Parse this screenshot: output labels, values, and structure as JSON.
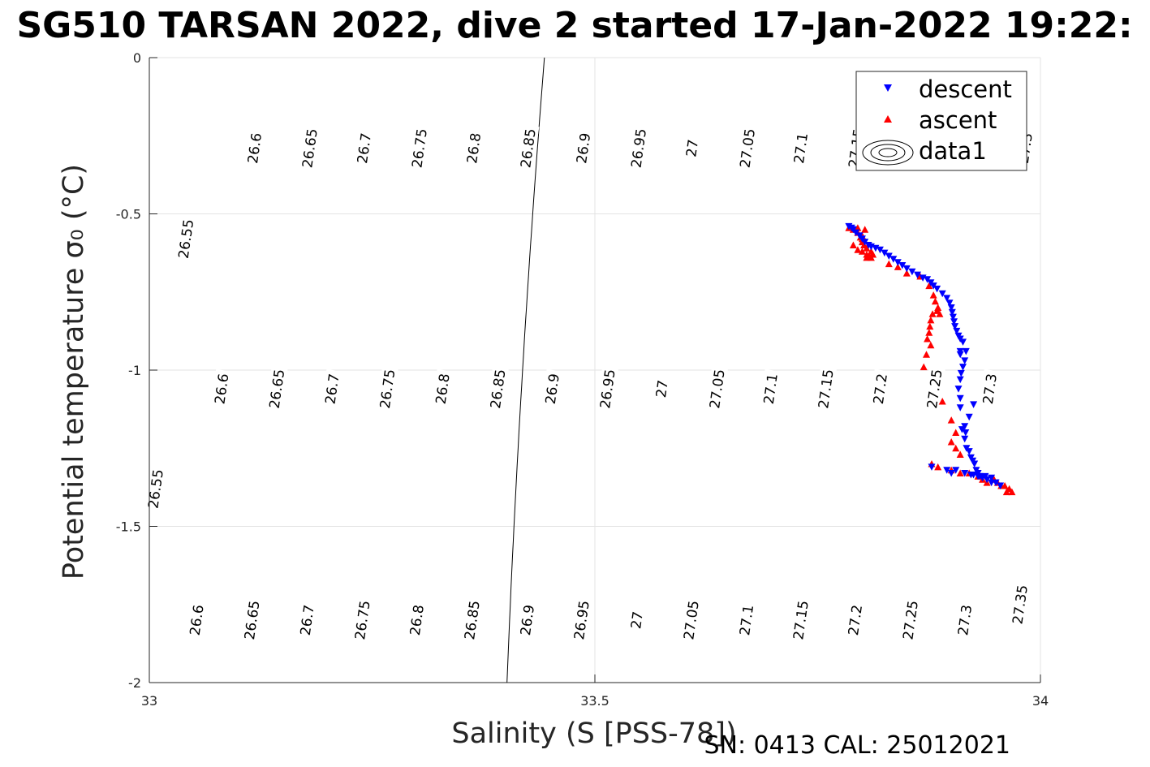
{
  "chart_data": {
    "type": "scatter",
    "title": "SG510 TARSAN 2022, dive 2 started 17-Jan-2022 19:22:",
    "xlabel": "Salinity (S [PSS-78])",
    "ylabel": "Potential temperature σ₀ (°C)",
    "xlim": [
      33,
      34
    ],
    "ylim": [
      -2,
      0
    ],
    "xticks": [
      "33",
      "33.5",
      "34"
    ],
    "yticks": [
      "-2",
      "-1.5",
      "-1",
      "-0.5",
      "0"
    ],
    "grid": true,
    "legend": {
      "placement": "top-right",
      "entries": [
        "descent",
        "ascent",
        "data1"
      ]
    },
    "footer": "SN: 0413  CAL: 25012021",
    "colors": {
      "descent": "#0000ff",
      "ascent": "#ff0000",
      "contour": "#000000",
      "grid": "#e3e3e3"
    },
    "contour_levels": [
      26.55,
      26.6,
      26.65,
      26.7,
      26.75,
      26.8,
      26.85,
      26.9,
      26.95,
      27.0,
      27.05,
      27.1,
      27.15,
      27.2,
      27.25,
      27.3,
      27.35
    ],
    "contour_labels": [
      {
        "text": "26.6",
        "s": 33.118,
        "t": -0.29
      },
      {
        "text": "26.65",
        "s": 33.18,
        "t": -0.29
      },
      {
        "text": "26.7",
        "s": 33.241,
        "t": -0.29
      },
      {
        "text": "26.75",
        "s": 33.303,
        "t": -0.29
      },
      {
        "text": "26.8",
        "s": 33.364,
        "t": -0.29
      },
      {
        "text": "26.85",
        "s": 33.425,
        "t": -0.29
      },
      {
        "text": "26.9",
        "s": 33.487,
        "t": -0.29
      },
      {
        "text": "26.95",
        "s": 33.549,
        "t": -0.29
      },
      {
        "text": "27",
        "s": 33.609,
        "t": -0.29
      },
      {
        "text": "27.05",
        "s": 33.671,
        "t": -0.29
      },
      {
        "text": "27.1",
        "s": 33.731,
        "t": -0.29
      },
      {
        "text": "27.15",
        "s": 33.793,
        "t": -0.29
      },
      {
        "text": "27.3",
        "s": 33.983,
        "t": -0.29
      },
      {
        "text": "26.55",
        "s": 33.041,
        "t": -0.58
      },
      {
        "text": "26.6",
        "s": 33.081,
        "t": -1.06
      },
      {
        "text": "26.65",
        "s": 33.143,
        "t": -1.06
      },
      {
        "text": "26.7",
        "s": 33.205,
        "t": -1.06
      },
      {
        "text": "26.75",
        "s": 33.267,
        "t": -1.06
      },
      {
        "text": "26.8",
        "s": 33.329,
        "t": -1.06
      },
      {
        "text": "26.85",
        "s": 33.391,
        "t": -1.06
      },
      {
        "text": "26.9",
        "s": 33.452,
        "t": -1.06
      },
      {
        "text": "26.95",
        "s": 33.514,
        "t": -1.06
      },
      {
        "text": "27",
        "s": 33.575,
        "t": -1.06
      },
      {
        "text": "27.05",
        "s": 33.637,
        "t": -1.06
      },
      {
        "text": "27.1",
        "s": 33.697,
        "t": -1.06
      },
      {
        "text": "27.15",
        "s": 33.759,
        "t": -1.06
      },
      {
        "text": "27.2",
        "s": 33.82,
        "t": -1.06
      },
      {
        "text": "27.25",
        "s": 33.881,
        "t": -1.06
      },
      {
        "text": "27.3",
        "s": 33.943,
        "t": -1.06
      },
      {
        "text": "26.55",
        "s": 33.007,
        "t": -1.38
      },
      {
        "text": "26.6",
        "s": 33.053,
        "t": -1.8
      },
      {
        "text": "26.65",
        "s": 33.115,
        "t": -1.8
      },
      {
        "text": "26.7",
        "s": 33.177,
        "t": -1.8
      },
      {
        "text": "26.75",
        "s": 33.239,
        "t": -1.8
      },
      {
        "text": "26.8",
        "s": 33.3,
        "t": -1.8
      },
      {
        "text": "26.85",
        "s": 33.362,
        "t": -1.8
      },
      {
        "text": "26.9",
        "s": 33.424,
        "t": -1.8
      },
      {
        "text": "26.95",
        "s": 33.485,
        "t": -1.8
      },
      {
        "text": "27",
        "s": 33.547,
        "t": -1.8
      },
      {
        "text": "27.05",
        "s": 33.608,
        "t": -1.8
      },
      {
        "text": "27.1",
        "s": 33.67,
        "t": -1.8
      },
      {
        "text": "27.15",
        "s": 33.731,
        "t": -1.8
      },
      {
        "text": "27.2",
        "s": 33.792,
        "t": -1.8
      },
      {
        "text": "27.25",
        "s": 33.854,
        "t": -1.8
      },
      {
        "text": "27.3",
        "s": 33.915,
        "t": -1.8
      },
      {
        "text": "27.35",
        "s": 33.977,
        "t": -1.75
      }
    ],
    "series": [
      {
        "name": "descent",
        "marker": "triangle-down",
        "points": [
          [
            33.785,
            -0.54
          ],
          [
            33.788,
            -0.545
          ],
          [
            33.79,
            -0.55
          ],
          [
            33.793,
            -0.56
          ],
          [
            33.797,
            -0.57
          ],
          [
            33.8,
            -0.58
          ],
          [
            33.803,
            -0.59
          ],
          [
            33.807,
            -0.6
          ],
          [
            33.81,
            -0.605
          ],
          [
            33.815,
            -0.61
          ],
          [
            33.82,
            -0.615
          ],
          [
            33.825,
            -0.625
          ],
          [
            33.83,
            -0.635
          ],
          [
            33.835,
            -0.645
          ],
          [
            33.84,
            -0.655
          ],
          [
            33.845,
            -0.665
          ],
          [
            33.85,
            -0.675
          ],
          [
            33.856,
            -0.685
          ],
          [
            33.862,
            -0.695
          ],
          [
            33.868,
            -0.705
          ],
          [
            33.873,
            -0.71
          ],
          [
            33.877,
            -0.72
          ],
          [
            33.88,
            -0.73
          ],
          [
            33.884,
            -0.74
          ],
          [
            33.89,
            -0.755
          ],
          [
            33.895,
            -0.77
          ],
          [
            33.898,
            -0.785
          ],
          [
            33.9,
            -0.8
          ],
          [
            33.901,
            -0.815
          ],
          [
            33.902,
            -0.83
          ],
          [
            33.903,
            -0.845
          ],
          [
            33.904,
            -0.86
          ],
          [
            33.906,
            -0.875
          ],
          [
            33.908,
            -0.89
          ],
          [
            33.91,
            -0.9
          ],
          [
            33.913,
            -0.91
          ],
          [
            33.91,
            -0.94
          ],
          [
            33.91,
            -0.95
          ],
          [
            33.9165,
            -0.94
          ],
          [
            33.915,
            -0.97
          ],
          [
            33.913,
            -0.99
          ],
          [
            33.911,
            -1.01
          ],
          [
            33.91,
            -1.03
          ],
          [
            33.908,
            -1.06
          ],
          [
            33.91,
            -1.09
          ],
          [
            33.91,
            -1.12
          ],
          [
            33.925,
            -1.11
          ],
          [
            33.92,
            -1.15
          ],
          [
            33.915,
            -1.18
          ],
          [
            33.912,
            -1.19
          ],
          [
            33.916,
            -1.2
          ],
          [
            33.915,
            -1.22
          ],
          [
            33.917,
            -1.25
          ],
          [
            33.92,
            -1.26
          ],
          [
            33.922,
            -1.28
          ],
          [
            33.924,
            -1.29
          ],
          [
            33.926,
            -1.3
          ],
          [
            33.928,
            -1.32
          ],
          [
            33.93,
            -1.33
          ],
          [
            33.93,
            -1.34
          ],
          [
            33.935,
            -1.345
          ],
          [
            33.94,
            -1.35
          ],
          [
            33.945,
            -1.36
          ],
          [
            33.95,
            -1.36
          ],
          [
            33.955,
            -1.37
          ],
          [
            33.938,
            -1.34
          ],
          [
            33.925,
            -1.335
          ],
          [
            33.915,
            -1.33
          ],
          [
            33.905,
            -1.32
          ],
          [
            33.9,
            -1.33
          ],
          [
            33.895,
            -1.32
          ],
          [
            33.878,
            -1.31
          ],
          [
            33.922,
            -1.335
          ],
          [
            33.932,
            -1.34
          ],
          [
            33.945,
            -1.345
          ]
        ]
      },
      {
        "name": "ascent",
        "marker": "triangle-up",
        "points": [
          [
            33.785,
            -0.545
          ],
          [
            33.79,
            -0.55
          ],
          [
            33.795,
            -0.56
          ],
          [
            33.798,
            -0.575
          ],
          [
            33.8,
            -0.59
          ],
          [
            33.802,
            -0.6
          ],
          [
            33.805,
            -0.61
          ],
          [
            33.8,
            -0.62
          ],
          [
            33.805,
            -0.63
          ],
          [
            33.808,
            -0.635
          ],
          [
            33.81,
            -0.64
          ],
          [
            33.79,
            -0.6
          ],
          [
            33.795,
            -0.615
          ],
          [
            33.8,
            -0.57
          ],
          [
            33.795,
            -0.545
          ],
          [
            33.803,
            -0.55
          ],
          [
            33.8,
            -0.58
          ],
          [
            33.81,
            -0.62
          ],
          [
            33.812,
            -0.63
          ],
          [
            33.805,
            -0.64
          ],
          [
            33.83,
            -0.66
          ],
          [
            33.84,
            -0.67
          ],
          [
            33.85,
            -0.69
          ],
          [
            33.865,
            -0.7
          ],
          [
            33.875,
            -0.73
          ],
          [
            33.88,
            -0.76
          ],
          [
            33.882,
            -0.78
          ],
          [
            33.885,
            -0.8
          ],
          [
            33.887,
            -0.82
          ],
          [
            33.884,
            -0.81
          ],
          [
            33.879,
            -0.82
          ],
          [
            33.877,
            -0.84
          ],
          [
            33.876,
            -0.86
          ],
          [
            33.875,
            -0.88
          ],
          [
            33.873,
            -0.9
          ],
          [
            33.877,
            -0.92
          ],
          [
            33.872,
            -0.95
          ],
          [
            33.869,
            -0.99
          ],
          [
            33.89,
            -1.1
          ],
          [
            33.9,
            -1.16
          ],
          [
            33.905,
            -1.2
          ],
          [
            33.9,
            -1.23
          ],
          [
            33.905,
            -1.25
          ],
          [
            33.91,
            -1.27
          ],
          [
            33.878,
            -1.3
          ],
          [
            33.885,
            -1.31
          ],
          [
            33.9,
            -1.32
          ],
          [
            33.91,
            -1.33
          ],
          [
            33.92,
            -1.33
          ],
          [
            33.93,
            -1.34
          ],
          [
            33.935,
            -1.35
          ],
          [
            33.94,
            -1.36
          ],
          [
            33.948,
            -1.35
          ],
          [
            33.952,
            -1.36
          ],
          [
            33.956,
            -1.37
          ],
          [
            33.96,
            -1.37
          ],
          [
            33.965,
            -1.38
          ],
          [
            33.968,
            -1.39
          ],
          [
            33.962,
            -1.39
          ]
        ]
      }
    ]
  }
}
